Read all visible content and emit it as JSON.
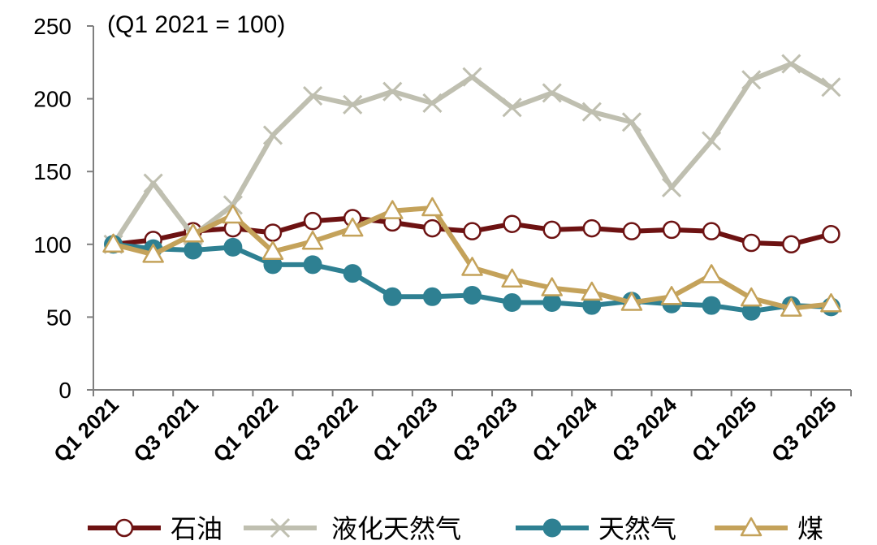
{
  "chart_data": {
    "type": "line",
    "annotation": "(Q1 2021 = 100)",
    "ylim": [
      0,
      250
    ],
    "yticks": [
      0,
      50,
      100,
      150,
      200,
      250
    ],
    "x": [
      "Q1 2021",
      "Q2 2021",
      "Q3 2021",
      "Q4 2021",
      "Q1 2022",
      "Q2 2022",
      "Q3 2022",
      "Q4 2022",
      "Q1 2023",
      "Q2 2023",
      "Q3 2023",
      "Q4 2023",
      "Q1 2024",
      "Q2 2024",
      "Q3 2024",
      "Q4 2024",
      "Q1 2025",
      "Q2 2025",
      "Q3 2025"
    ],
    "xtick_labels": [
      "Q1  2021",
      "Q3  2021",
      "Q1  2022",
      "Q3  2022",
      "Q1  2023",
      "Q3  2023",
      "Q1  2024",
      "Q3  2024",
      "Q1  2025",
      "Q3  2025"
    ],
    "legend_position": "bottom",
    "series": [
      {
        "name": "石油",
        "color": "#6d1212",
        "marker": "circle-open",
        "values": [
          100,
          103,
          109,
          111,
          108,
          116,
          118,
          115,
          111,
          109,
          114,
          110,
          111,
          109,
          110,
          109,
          101,
          100,
          107
        ]
      },
      {
        "name": "液化天然气",
        "color": "#bfbfb0",
        "marker": "x",
        "values": [
          100,
          142,
          106,
          127,
          175,
          202,
          196,
          205,
          197,
          215,
          194,
          204,
          191,
          184,
          139,
          171,
          213,
          224,
          208
        ]
      },
      {
        "name": "天然气",
        "color": "#2e8092",
        "marker": "circle-filled",
        "values": [
          100,
          97,
          96,
          98,
          86,
          86,
          80,
          64,
          64,
          65,
          60,
          60,
          58,
          61,
          59,
          58,
          54,
          58,
          57
        ]
      },
      {
        "name": "煤",
        "color": "#c4a25a",
        "marker": "triangle-open",
        "values": [
          100,
          93,
          107,
          120,
          95,
          102,
          111,
          123,
          125,
          84,
          76,
          70,
          67,
          60,
          64,
          79,
          63,
          56,
          59
        ]
      }
    ]
  }
}
